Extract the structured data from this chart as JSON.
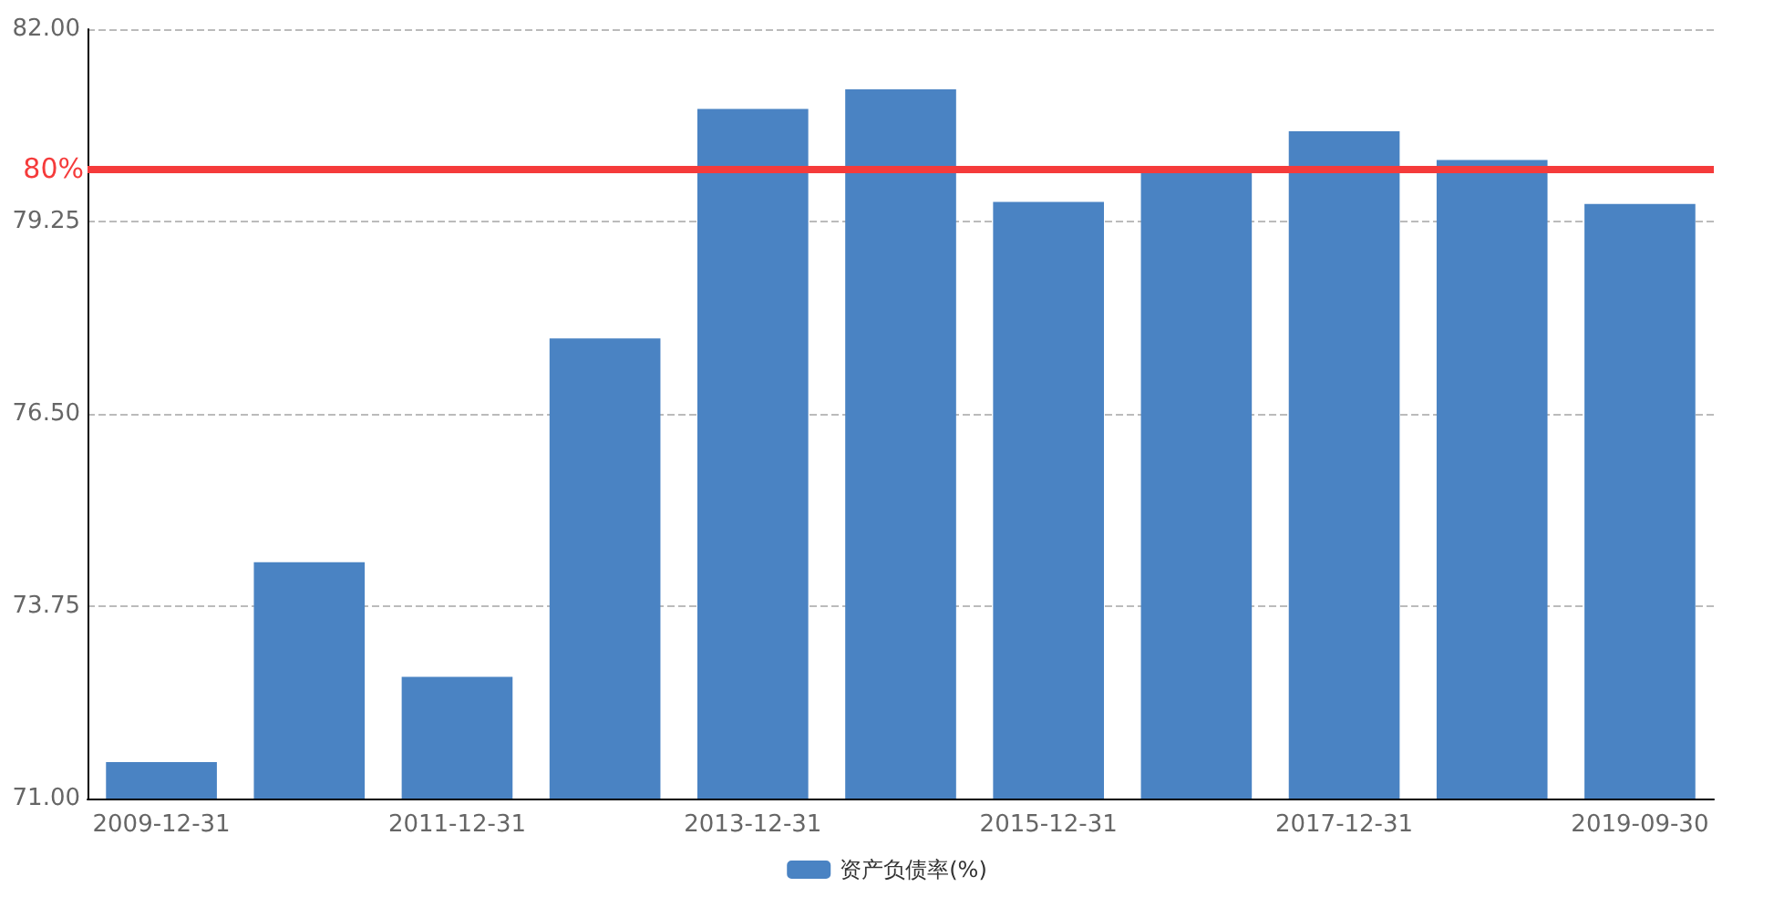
{
  "chart_data": {
    "type": "bar",
    "categories": [
      "2009-12-31",
      null,
      "2011-12-31",
      null,
      "2013-12-31",
      null,
      "2015-12-31",
      null,
      "2017-12-31",
      null,
      "2019-09-30"
    ],
    "series": [
      {
        "name": "资产负债率(%)",
        "color": "#4a83c3",
        "values": [
          71.52,
          74.38,
          72.74,
          77.58,
          80.86,
          81.14,
          79.53,
          80.0,
          80.54,
          80.13,
          79.5
        ]
      }
    ],
    "ylim": [
      71,
      82
    ],
    "yticks": [
      {
        "value": 71,
        "label": "71.00"
      },
      {
        "value": 73.75,
        "label": "73.75"
      },
      {
        "value": 76.5,
        "label": "76.50"
      },
      {
        "value": 79.25,
        "label": "79.25"
      },
      {
        "value": 82,
        "label": "82.00"
      }
    ],
    "grid": "y",
    "legend": "bottom",
    "ref_lines": [
      {
        "axis": "y",
        "value": 80,
        "label": "80%",
        "color": "#f53b3b"
      }
    ]
  }
}
